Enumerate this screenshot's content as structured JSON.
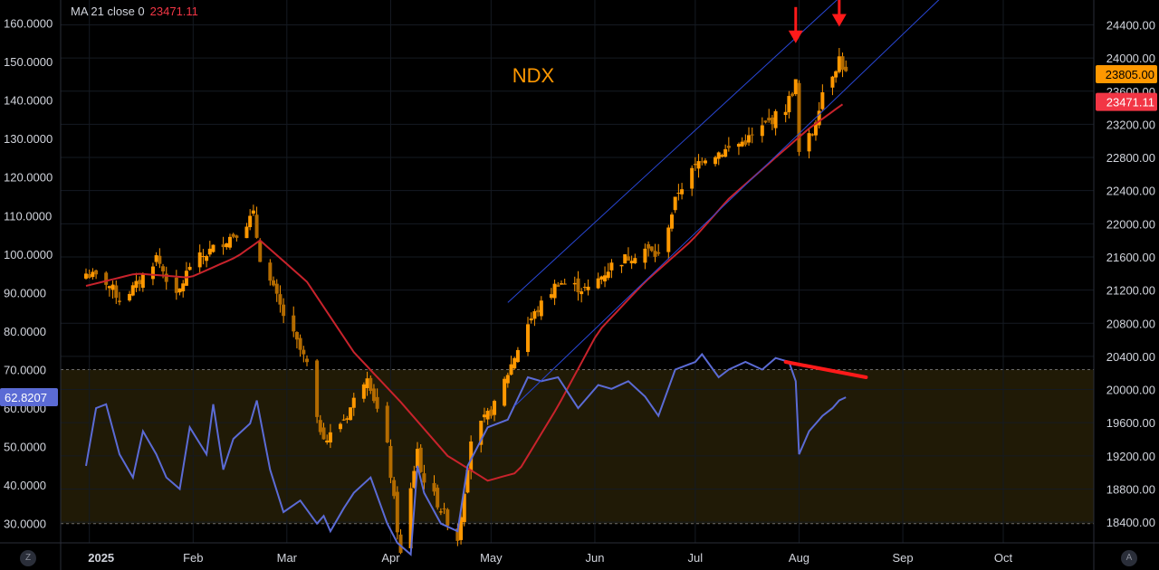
{
  "legend": {
    "indicator": "MA 21 close 0",
    "value": "23471.11"
  },
  "corner_left": "Z",
  "corner_right": "A",
  "chart_data": {
    "type": "candlestick",
    "title": "NDX",
    "x_labels": [
      "2025",
      "Feb",
      "Mar",
      "Apr",
      "May",
      "Jun",
      "Jul",
      "Aug",
      "Sep",
      "Oct"
    ],
    "left_axis": {
      "ticks": [
        "160.0000",
        "150.0000",
        "140.0000",
        "130.0000",
        "120.0000",
        "110.0000",
        "100.0000",
        "90.0000",
        "80.0000",
        "70.0000",
        "60.0000",
        "50.0000",
        "40.0000",
        "30.0000"
      ],
      "range": [
        25,
        166
      ]
    },
    "right_axis": {
      "ticks": [
        "24400.00",
        "24000.00",
        "23600.00",
        "23200.00",
        "22800.00",
        "22400.00",
        "22000.00",
        "21600.00",
        "21200.00",
        "20800.00",
        "20400.00",
        "20000.00",
        "19600.00",
        "19200.00",
        "18800.00",
        "18400.00"
      ],
      "range": [
        18150,
        24700
      ]
    },
    "price_badges": [
      {
        "label": "23805.00",
        "color": "#ff9800"
      },
      {
        "label": "23471.11",
        "color": "#f23645"
      }
    ],
    "rsi_badge": {
      "label": "62.8207",
      "color": "#5b6bd5"
    },
    "overbought_level": 70,
    "oversold_level": 30,
    "colors": {
      "candle": "#ff9800",
      "ma": "#c8232c",
      "rsi": "#5b6bd5",
      "channel": "#2947d6",
      "annotation": "#ff1a1a"
    },
    "price_anchors": [
      [
        "2024-12-31",
        21400
      ],
      [
        "2025-01-06",
        21300
      ],
      [
        "2025-01-10",
        21100
      ],
      [
        "2025-01-15",
        21250
      ],
      [
        "2025-01-21",
        21600
      ],
      [
        "2025-01-27",
        21100
      ],
      [
        "2025-01-31",
        21500
      ],
      [
        "2025-02-07",
        21700
      ],
      [
        "2025-02-14",
        21900
      ],
      [
        "2025-02-19",
        22100
      ],
      [
        "2025-02-21",
        21600
      ],
      [
        "2025-02-28",
        20900
      ],
      [
        "2025-03-07",
        20300
      ],
      [
        "2025-03-10",
        19600
      ],
      [
        "2025-03-13",
        19400
      ],
      [
        "2025-03-19",
        19700
      ],
      [
        "2025-03-25",
        20200
      ],
      [
        "2025-03-31",
        19300
      ],
      [
        "2025-04-04",
        18000
      ],
      [
        "2025-04-09",
        19300
      ],
      [
        "2025-04-10",
        19000
      ],
      [
        "2025-04-21",
        18200
      ],
      [
        "2025-04-25",
        19400
      ],
      [
        "2025-05-02",
        19800
      ],
      [
        "2025-05-12",
        20800
      ],
      [
        "2025-05-21",
        21300
      ],
      [
        "2025-05-30",
        21200
      ],
      [
        "2025-06-06",
        21500
      ],
      [
        "2025-06-16",
        21700
      ],
      [
        "2025-06-20",
        21600
      ],
      [
        "2025-06-26",
        22400
      ],
      [
        "2025-07-03",
        22800
      ],
      [
        "2025-07-11",
        22900
      ],
      [
        "2025-07-18",
        23050
      ],
      [
        "2025-07-25",
        23300
      ],
      [
        "2025-07-28",
        23400
      ],
      [
        "2025-07-31",
        23700
      ],
      [
        "2025-08-01",
        22850
      ],
      [
        "2025-08-05",
        23100
      ],
      [
        "2025-08-08",
        23600
      ],
      [
        "2025-08-12",
        23900
      ],
      [
        "2025-08-13",
        24000
      ],
      [
        "2025-08-15",
        23805
      ]
    ],
    "ma_anchors": [
      [
        "2024-12-31",
        21250
      ],
      [
        "2025-01-15",
        21400
      ],
      [
        "2025-01-31",
        21350
      ],
      [
        "2025-02-14",
        21600
      ],
      [
        "2025-02-21",
        21800
      ],
      [
        "2025-03-07",
        21300
      ],
      [
        "2025-03-21",
        20450
      ],
      [
        "2025-04-04",
        19850
      ],
      [
        "2025-04-18",
        19200
      ],
      [
        "2025-04-30",
        18900
      ],
      [
        "2025-05-09",
        19000
      ],
      [
        "2025-05-21",
        19800
      ],
      [
        "2025-06-02",
        20700
      ],
      [
        "2025-06-16",
        21300
      ],
      [
        "2025-06-30",
        21800
      ],
      [
        "2025-07-11",
        22300
      ],
      [
        "2025-07-25",
        22800
      ],
      [
        "2025-08-04",
        23150
      ],
      [
        "2025-08-15",
        23471
      ]
    ],
    "rsi_anchors": [
      [
        "2024-12-31",
        45
      ],
      [
        "2025-01-03",
        60
      ],
      [
        "2025-01-06",
        61
      ],
      [
        "2025-01-10",
        48
      ],
      [
        "2025-01-14",
        42
      ],
      [
        "2025-01-17",
        54
      ],
      [
        "2025-01-21",
        48
      ],
      [
        "2025-01-24",
        42
      ],
      [
        "2025-01-28",
        39
      ],
      [
        "2025-01-31",
        55
      ],
      [
        "2025-02-05",
        48
      ],
      [
        "2025-02-07",
        61
      ],
      [
        "2025-02-10",
        44
      ],
      [
        "2025-02-13",
        52
      ],
      [
        "2025-02-18",
        56
      ],
      [
        "2025-02-20",
        62
      ],
      [
        "2025-02-24",
        44
      ],
      [
        "2025-02-28",
        33
      ],
      [
        "2025-03-05",
        36
      ],
      [
        "2025-03-10",
        30
      ],
      [
        "2025-03-12",
        32
      ],
      [
        "2025-03-14",
        28
      ],
      [
        "2025-03-18",
        34
      ],
      [
        "2025-03-21",
        38
      ],
      [
        "2025-03-26",
        42
      ],
      [
        "2025-03-31",
        30
      ],
      [
        "2025-04-03",
        25
      ],
      [
        "2025-04-07",
        22
      ],
      [
        "2025-04-09",
        45
      ],
      [
        "2025-04-11",
        38
      ],
      [
        "2025-04-16",
        30
      ],
      [
        "2025-04-21",
        28
      ],
      [
        "2025-04-24",
        45
      ],
      [
        "2025-04-30",
        55
      ],
      [
        "2025-05-06",
        57
      ],
      [
        "2025-05-12",
        68
      ],
      [
        "2025-05-16",
        67
      ],
      [
        "2025-05-21",
        68
      ],
      [
        "2025-05-27",
        60
      ],
      [
        "2025-06-02",
        66
      ],
      [
        "2025-06-06",
        65
      ],
      [
        "2025-06-11",
        67
      ],
      [
        "2025-06-16",
        63
      ],
      [
        "2025-06-20",
        58
      ],
      [
        "2025-06-25",
        70
      ],
      [
        "2025-07-01",
        72
      ],
      [
        "2025-07-03",
        74
      ],
      [
        "2025-07-08",
        68
      ],
      [
        "2025-07-11",
        70
      ],
      [
        "2025-07-16",
        72
      ],
      [
        "2025-07-21",
        70
      ],
      [
        "2025-07-25",
        73
      ],
      [
        "2025-07-29",
        72
      ],
      [
        "2025-07-31",
        67
      ],
      [
        "2025-08-01",
        48
      ],
      [
        "2025-08-04",
        54
      ],
      [
        "2025-08-06",
        56
      ],
      [
        "2025-08-08",
        58
      ],
      [
        "2025-08-11",
        60
      ],
      [
        "2025-08-13",
        62
      ],
      [
        "2025-08-15",
        62.8
      ]
    ],
    "channel": {
      "upper": [
        [
          "2025-05-06",
          21050
        ],
        [
          "2025-08-15",
          24800
        ]
      ],
      "lower": [
        [
          "2025-05-08",
          19800
        ],
        [
          "2025-09-13",
          24750
        ]
      ]
    },
    "divergence_line": {
      "rsi": [
        [
          "2025-07-28",
          72
        ],
        [
          "2025-08-21",
          68
        ]
      ]
    },
    "arrows": [
      [
        "2025-07-31",
        24200
      ],
      [
        "2025-08-13",
        24400
      ]
    ]
  }
}
